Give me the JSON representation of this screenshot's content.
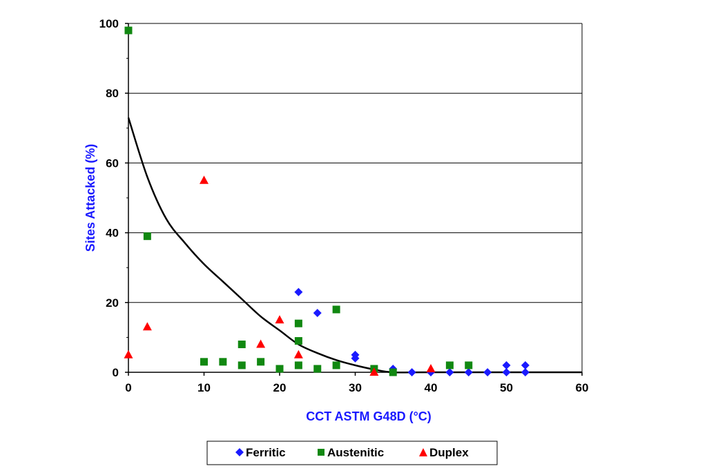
{
  "chart_data": {
    "type": "scatter",
    "xlabel": "CCT ASTM G48D (°C)",
    "ylabel": "Sites Attacked (%)",
    "xlim": [
      0,
      60
    ],
    "ylim": [
      0,
      100
    ],
    "xticks": [
      0,
      10,
      20,
      30,
      40,
      50,
      60
    ],
    "yticks": [
      0,
      20,
      40,
      60,
      80,
      100
    ],
    "xtick_labels": [
      "0",
      "10",
      "20",
      "30",
      "40",
      "50",
      "60"
    ],
    "ytick_labels": [
      "0",
      "20",
      "40",
      "60",
      "80",
      "100"
    ],
    "grid": "horizontal major lines",
    "legend_position": "bottom-center",
    "series": [
      {
        "name": "Ferritic",
        "marker": "diamond",
        "color": "#1a1aff",
        "points": [
          [
            22.5,
            23
          ],
          [
            25,
            17
          ],
          [
            30,
            5
          ],
          [
            30,
            4
          ],
          [
            35,
            1
          ],
          [
            37.5,
            0
          ],
          [
            40,
            0
          ],
          [
            42.5,
            0
          ],
          [
            45,
            0
          ],
          [
            47.5,
            0
          ],
          [
            50,
            2
          ],
          [
            50,
            0
          ],
          [
            52.5,
            2
          ],
          [
            52.5,
            0
          ]
        ]
      },
      {
        "name": "Austenitic",
        "marker": "square",
        "color": "#118811",
        "points": [
          [
            0,
            98
          ],
          [
            2.5,
            39
          ],
          [
            10,
            3
          ],
          [
            12.5,
            3
          ],
          [
            15,
            8
          ],
          [
            15,
            2
          ],
          [
            17.5,
            3
          ],
          [
            20,
            1
          ],
          [
            22.5,
            14
          ],
          [
            22.5,
            9
          ],
          [
            22.5,
            2
          ],
          [
            25,
            1
          ],
          [
            27.5,
            18
          ],
          [
            27.5,
            2
          ],
          [
            32.5,
            1
          ],
          [
            35,
            0
          ],
          [
            42.5,
            2
          ],
          [
            45,
            2
          ]
        ]
      },
      {
        "name": "Duplex",
        "marker": "triangle",
        "color": "#ff0000",
        "points": [
          [
            0,
            5
          ],
          [
            2.5,
            13
          ],
          [
            10,
            55
          ],
          [
            17.5,
            8
          ],
          [
            20,
            15
          ],
          [
            22.5,
            5
          ],
          [
            32.5,
            0
          ],
          [
            40,
            1
          ]
        ]
      }
    ],
    "trend_line": {
      "color": "#000000",
      "points": [
        [
          0,
          73
        ],
        [
          2.5,
          56
        ],
        [
          5,
          44
        ],
        [
          7.5,
          37
        ],
        [
          10,
          31
        ],
        [
          12.5,
          26
        ],
        [
          15,
          21
        ],
        [
          17.5,
          16
        ],
        [
          20,
          12
        ],
        [
          22.5,
          8
        ],
        [
          25,
          5.5
        ],
        [
          27.5,
          3.5
        ],
        [
          30,
          2
        ],
        [
          32.5,
          0.8
        ],
        [
          35,
          0
        ],
        [
          40,
          0
        ],
        [
          60,
          0
        ]
      ]
    }
  }
}
